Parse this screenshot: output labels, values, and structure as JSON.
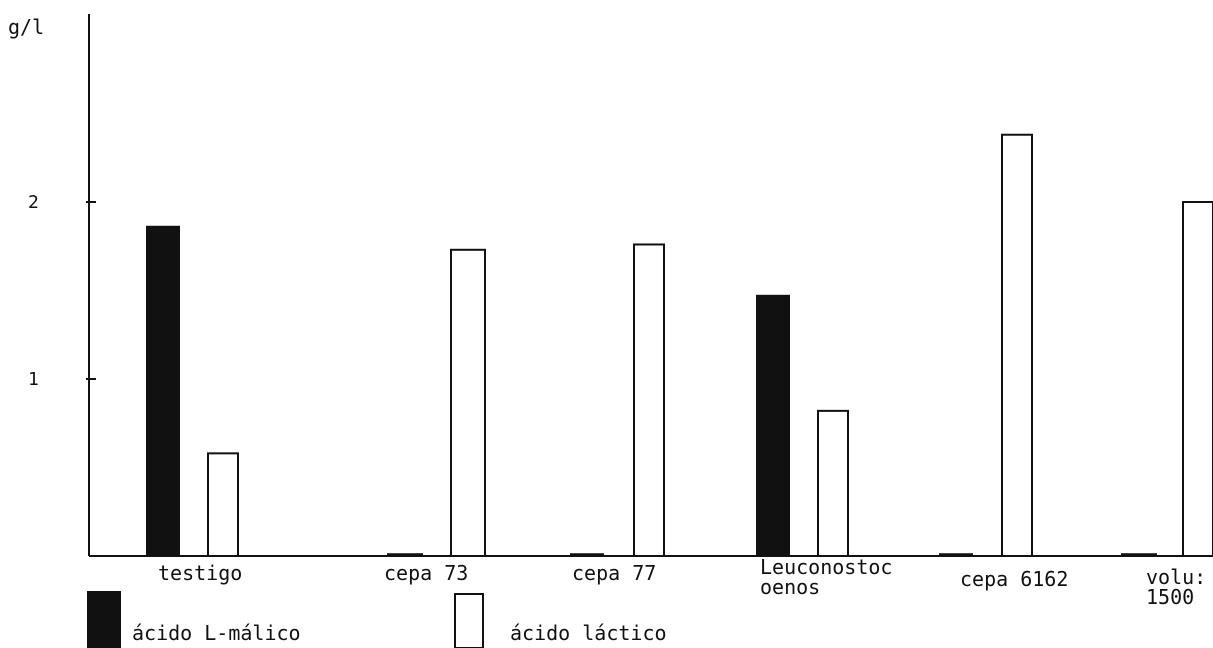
{
  "chart_data": {
    "type": "bar",
    "y_unit": "g/l",
    "yticks": [
      "1",
      "2"
    ],
    "ylim": [
      0,
      3
    ],
    "grid": false,
    "legend_position": "bottom-left",
    "categories": [
      [
        "testigo"
      ],
      [
        "cepa 73"
      ],
      [
        "cepa 77"
      ],
      [
        "Leuconostoc",
        "oenos"
      ],
      [
        "cepa 6162"
      ],
      [
        "volu:",
        "1500"
      ]
    ],
    "series": [
      {
        "name": "ácido L-málico",
        "fill": "filled",
        "color": "#111111",
        "values": [
          1.86,
          0.01,
          0.01,
          1.47,
          0.01,
          0.01
        ]
      },
      {
        "name": "ácido láctico",
        "fill": "open",
        "color": "#ffffff",
        "values": [
          0.58,
          1.73,
          1.76,
          0.82,
          2.38,
          2.0
        ]
      }
    ]
  }
}
